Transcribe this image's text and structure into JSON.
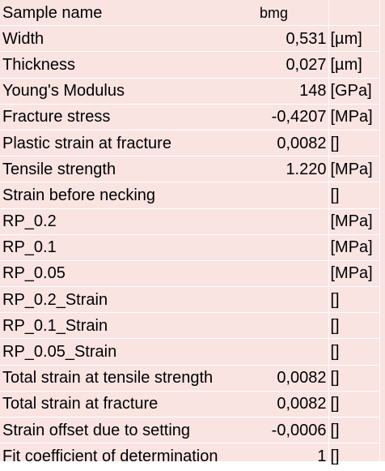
{
  "rows": [
    {
      "label": "Sample name",
      "value": "bmg",
      "unit": ""
    },
    {
      "label": "Width",
      "value": "0,531",
      "unit": "[µm]"
    },
    {
      "label": "Thickness",
      "value": "0,027",
      "unit": "[µm]"
    },
    {
      "label": "Young's  Modulus",
      "value": "148",
      "unit": "[GPa]"
    },
    {
      "label": "Fracture stress",
      "value": "-0,4207",
      "unit": "[MPa]"
    },
    {
      "label": "Plastic strain at fracture",
      "value": "0,0082",
      "unit": "[]"
    },
    {
      "label": "Tensile strength",
      "value": "1.220",
      "unit": "[MPa]"
    },
    {
      "label": "Strain before necking",
      "value": "",
      "unit": "[]"
    },
    {
      "label": "RP_0.2",
      "value": "",
      "unit": "[MPa]"
    },
    {
      "label": "RP_0.1",
      "value": "",
      "unit": "[MPa]"
    },
    {
      "label": "RP_0.05",
      "value": "",
      "unit": "[MPa]"
    },
    {
      "label": "RP_0.2_Strain",
      "value": "",
      "unit": "[]"
    },
    {
      "label": "RP_0.1_Strain",
      "value": "",
      "unit": "[]"
    },
    {
      "label": "RP_0.05_Strain",
      "value": "",
      "unit": "[]"
    },
    {
      "label": "Total strain at tensile strength",
      "value": "0,0082",
      "unit": "[]"
    },
    {
      "label": "Total strain at fracture",
      "value": "0,0082",
      "unit": "[]"
    },
    {
      "label": "Strain offset due to setting",
      "value": "-0,0006",
      "unit": "[]"
    },
    {
      "label": "Fit coefficient of determination",
      "value": "1",
      "unit": "[]"
    }
  ],
  "colors": {
    "cell_background": "#f9e4e2",
    "grid_lines": "#ffffff",
    "text": "#000000"
  }
}
